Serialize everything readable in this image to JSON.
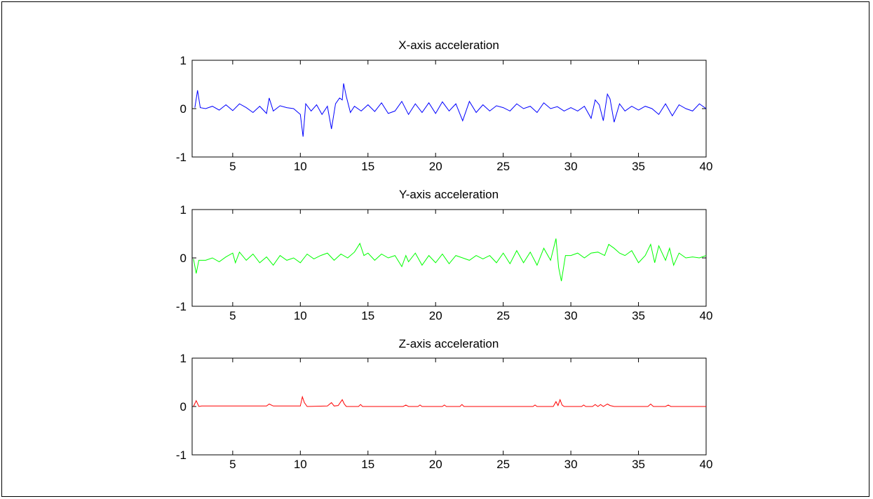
{
  "chart_data": [
    {
      "type": "line",
      "title": "X-axis acceleration",
      "xlabel": "",
      "ylabel": "",
      "xlim": [
        2,
        40
      ],
      "ylim": [
        -1,
        1
      ],
      "xticks": [
        5,
        10,
        15,
        20,
        25,
        30,
        35,
        40
      ],
      "yticks": [
        -1,
        0,
        1
      ],
      "grid": false,
      "series": [
        {
          "color": "#0000ff",
          "x": [
            2.2,
            2.4,
            2.6,
            3,
            3.5,
            4,
            4.5,
            5,
            5.5,
            6,
            6.5,
            7,
            7.5,
            7.7,
            8,
            8.5,
            9,
            9.5,
            10,
            10.2,
            10.4,
            10.8,
            11.2,
            11.6,
            12,
            12.3,
            12.6,
            12.9,
            13.1,
            13.2,
            13.4,
            13.7,
            14,
            14.5,
            15,
            15.5,
            16,
            16.5,
            17,
            17.5,
            18,
            18.5,
            19,
            19.5,
            20,
            20.5,
            21,
            21.5,
            22,
            22.5,
            23,
            23.5,
            24,
            24.5,
            25,
            25.5,
            26,
            26.5,
            27,
            27.5,
            28,
            28.5,
            29,
            29.5,
            30,
            30.5,
            31,
            31.5,
            31.8,
            32.1,
            32.4,
            32.7,
            32.9,
            33.2,
            33.6,
            34,
            34.5,
            35,
            35.5,
            36,
            36.5,
            37,
            37.5,
            38,
            38.5,
            39,
            39.5,
            40
          ],
          "y": [
            0.02,
            0.38,
            0.02,
            0.0,
            0.05,
            -0.03,
            0.08,
            -0.04,
            0.1,
            0.02,
            -0.08,
            0.05,
            -0.1,
            0.22,
            -0.05,
            0.06,
            0.02,
            0.0,
            -0.12,
            -0.58,
            0.1,
            -0.05,
            0.08,
            -0.12,
            0.05,
            -0.42,
            0.1,
            0.22,
            0.18,
            0.52,
            0.25,
            -0.08,
            0.05,
            -0.05,
            0.08,
            -0.06,
            0.12,
            -0.1,
            -0.05,
            0.15,
            -0.12,
            0.1,
            -0.08,
            0.12,
            -0.1,
            0.14,
            -0.05,
            0.1,
            -0.25,
            0.15,
            -0.08,
            0.08,
            -0.05,
            0.06,
            0.02,
            -0.05,
            0.1,
            0.0,
            0.05,
            -0.08,
            0.12,
            0.0,
            0.04,
            -0.05,
            0.02,
            -0.05,
            0.05,
            -0.2,
            0.18,
            0.08,
            -0.25,
            0.3,
            0.2,
            -0.28,
            0.1,
            -0.05,
            0.05,
            -0.03,
            0.05,
            0.0,
            -0.12,
            0.1,
            -0.15,
            0.08,
            0.0,
            -0.05,
            0.1,
            0.0
          ]
        }
      ]
    },
    {
      "type": "line",
      "title": "Y-axis acceleration",
      "xlabel": "",
      "ylabel": "",
      "xlim": [
        2,
        40
      ],
      "ylim": [
        -1,
        1
      ],
      "xticks": [
        5,
        10,
        15,
        20,
        25,
        30,
        35,
        40
      ],
      "yticks": [
        -1,
        0,
        1
      ],
      "grid": false,
      "series": [
        {
          "color": "#00ff00",
          "x": [
            2.1,
            2.3,
            2.5,
            3,
            3.5,
            4,
            4.5,
            5,
            5.2,
            5.5,
            6,
            6.5,
            7,
            7.5,
            8,
            8.5,
            9,
            9.5,
            10,
            10.5,
            11,
            11.5,
            12,
            12.5,
            13,
            13.5,
            14,
            14.4,
            14.7,
            15,
            15.5,
            16,
            16.5,
            17,
            17.5,
            17.8,
            18,
            18.5,
            19,
            19.5,
            20,
            20.5,
            21,
            21.5,
            22,
            22.5,
            23,
            23.5,
            24,
            24.5,
            25,
            25.5,
            26,
            26.5,
            27,
            27.5,
            28,
            28.5,
            28.9,
            29.1,
            29.3,
            29.6,
            30,
            30.5,
            31,
            31.5,
            32,
            32.5,
            32.8,
            33.2,
            33.6,
            34,
            34.5,
            35,
            35.5,
            35.9,
            36.2,
            36.5,
            37,
            37.3,
            37.6,
            38,
            38.5,
            39,
            39.5,
            40
          ],
          "y": [
            -0.02,
            -0.32,
            -0.05,
            -0.05,
            0.0,
            -0.08,
            0.02,
            0.1,
            -0.1,
            0.12,
            -0.05,
            0.08,
            -0.1,
            0.02,
            -0.15,
            0.05,
            -0.05,
            0.0,
            -0.1,
            0.08,
            -0.02,
            0.05,
            0.1,
            -0.05,
            0.08,
            0.0,
            0.12,
            0.3,
            0.05,
            0.1,
            -0.05,
            0.08,
            0.0,
            0.05,
            -0.18,
            0.05,
            -0.08,
            0.1,
            -0.15,
            0.05,
            -0.1,
            0.08,
            -0.12,
            0.05,
            0.0,
            -0.05,
            0.05,
            -0.02,
            0.05,
            -0.1,
            0.1,
            -0.12,
            0.15,
            -0.1,
            0.12,
            -0.15,
            0.2,
            -0.05,
            0.4,
            -0.2,
            -0.48,
            0.05,
            0.05,
            0.1,
            0.0,
            0.1,
            0.12,
            0.05,
            0.28,
            0.2,
            0.1,
            0.05,
            0.15,
            -0.1,
            0.05,
            0.28,
            -0.1,
            0.25,
            -0.05,
            0.2,
            -0.15,
            0.1,
            0.0,
            0.02,
            0.0,
            0.05
          ]
        }
      ]
    },
    {
      "type": "line",
      "title": "Z-axis acceleration",
      "xlabel": "",
      "ylabel": "",
      "xlim": [
        2,
        40
      ],
      "ylim": [
        -1,
        1
      ],
      "xticks": [
        5,
        10,
        15,
        20,
        25,
        30,
        35,
        40
      ],
      "yticks": [
        -1,
        0,
        1
      ],
      "grid": false,
      "series": [
        {
          "color": "#ff0000",
          "x": [
            2.1,
            2.3,
            2.5,
            2.7,
            5,
            7.5,
            7.7,
            8,
            10,
            10.15,
            10.3,
            10.5,
            12,
            12.3,
            12.5,
            12.8,
            13.1,
            13.25,
            13.4,
            14.3,
            14.45,
            14.6,
            16,
            17.6,
            17.8,
            18,
            18.7,
            18.85,
            19,
            20.5,
            20.65,
            20.8,
            21.8,
            21.95,
            22.1,
            27.2,
            27.35,
            27.5,
            28.7,
            28.9,
            29.05,
            29.2,
            29.35,
            29.5,
            30.8,
            30.95,
            31.1,
            31.6,
            31.8,
            32,
            32.2,
            32.4,
            32.7,
            32.9,
            33.2,
            35.7,
            35.9,
            36.1,
            37,
            37.2,
            37.4,
            40
          ],
          "y": [
            0.0,
            0.12,
            0.0,
            0.01,
            0.01,
            0.01,
            0.05,
            0.01,
            0.01,
            0.2,
            0.08,
            0.0,
            0.01,
            0.08,
            0.01,
            0.02,
            0.14,
            0.05,
            0.0,
            0.0,
            0.04,
            0.0,
            0.0,
            0.0,
            0.03,
            0.0,
            0.0,
            0.03,
            0.0,
            0.0,
            0.03,
            0.0,
            0.0,
            0.04,
            0.0,
            0.0,
            0.03,
            0.0,
            0.0,
            0.1,
            0.02,
            0.14,
            0.03,
            0.0,
            0.0,
            0.03,
            0.0,
            0.0,
            0.04,
            0.0,
            0.04,
            0.0,
            0.05,
            0.02,
            0.0,
            0.0,
            0.05,
            0.0,
            0.0,
            0.03,
            0.0,
            0.0
          ]
        }
      ]
    }
  ]
}
